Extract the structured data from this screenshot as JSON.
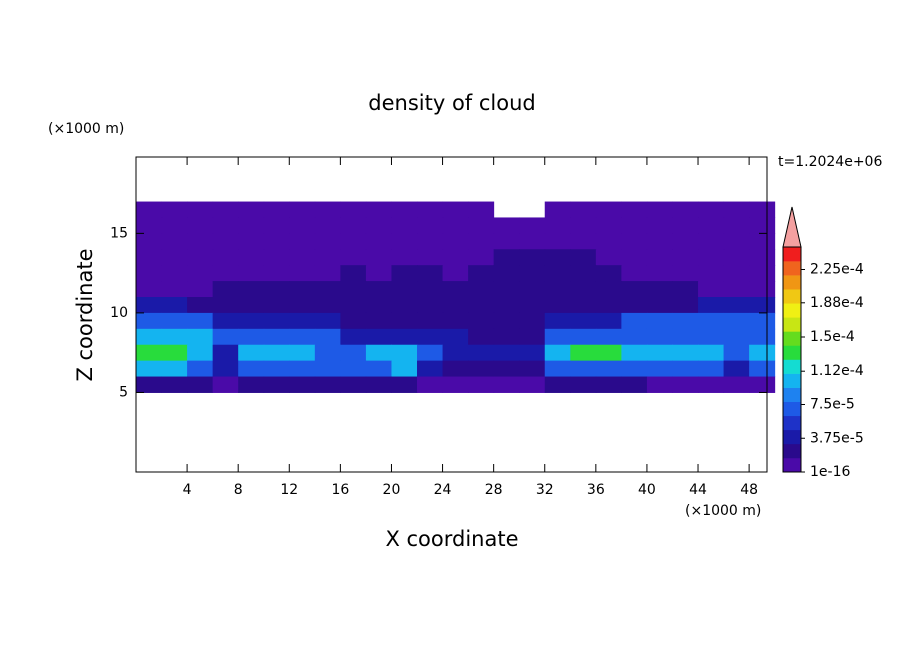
{
  "chart_data": {
    "type": "contour",
    "title": "density of cloud",
    "time_label": "t=1.2024e+06",
    "x_label": "X coordinate",
    "y_label": "Z coordinate",
    "x_unit": "(×1000 m)",
    "y_unit": "(×1000 m)",
    "xlim": [
      0,
      49.4
    ],
    "ylim": [
      0,
      19.8
    ],
    "xticks": [
      4,
      8,
      12,
      16,
      20,
      24,
      28,
      32,
      36,
      40,
      44,
      48
    ],
    "yticks": [
      5,
      10,
      15
    ],
    "x": [
      1,
      3,
      5,
      7,
      9,
      11,
      13,
      15,
      17,
      19,
      21,
      23,
      25,
      27,
      29,
      31,
      33,
      35,
      37,
      39,
      41,
      43,
      45,
      47,
      49
    ],
    "y": [
      16.5,
      15.5,
      14.5,
      13.5,
      12.5,
      11.5,
      10.5,
      9.5,
      8.5,
      7.5,
      6.5,
      5.5
    ],
    "values": [
      [
        2e-06,
        2e-06,
        2e-06,
        2e-06,
        2e-06,
        2e-06,
        2e-06,
        2e-06,
        2e-06,
        2e-06,
        2e-06,
        2e-06,
        2e-06,
        2e-06,
        null,
        null,
        2e-06,
        2e-06,
        2e-06,
        2e-06,
        2e-06,
        2e-06,
        2e-06,
        2e-06,
        2e-06
      ],
      [
        2e-06,
        2e-06,
        2e-06,
        2e-06,
        2e-06,
        2e-06,
        2e-06,
        2e-06,
        2e-06,
        2e-06,
        2e-06,
        2e-06,
        2e-06,
        2e-06,
        2e-06,
        2e-06,
        2e-06,
        2e-06,
        2e-06,
        2e-06,
        2e-06,
        2e-06,
        2e-06,
        2e-06,
        2e-06
      ],
      [
        2e-06,
        2e-06,
        2e-06,
        2e-06,
        2e-06,
        2e-06,
        2e-06,
        2e-06,
        2e-06,
        2e-06,
        2e-06,
        2e-06,
        2e-06,
        2e-06,
        2e-06,
        2e-06,
        2e-06,
        2e-06,
        2e-06,
        2e-06,
        2e-06,
        2e-06,
        2e-06,
        2e-06,
        2e-06
      ],
      [
        2e-06,
        2e-06,
        2e-06,
        2e-06,
        2e-06,
        2e-06,
        2e-06,
        2e-06,
        2e-06,
        2e-06,
        2e-06,
        2e-06,
        2e-06,
        2e-06,
        2e-05,
        2e-05,
        2e-05,
        2e-05,
        2e-06,
        2e-06,
        2e-06,
        2e-06,
        2e-06,
        2e-06,
        2e-06
      ],
      [
        2e-06,
        2e-06,
        2e-06,
        2e-06,
        2e-06,
        2e-06,
        2e-06,
        2e-06,
        2e-05,
        2e-06,
        2e-05,
        2e-05,
        2e-06,
        2e-05,
        2e-05,
        2e-05,
        2e-05,
        2e-05,
        2e-05,
        2e-06,
        2e-06,
        2e-06,
        2e-06,
        2e-06,
        2e-06
      ],
      [
        2e-06,
        2e-06,
        2e-06,
        2e-05,
        2e-05,
        2e-05,
        2e-05,
        2e-05,
        2e-05,
        2e-05,
        2e-05,
        2e-05,
        2e-05,
        2e-05,
        2e-05,
        2e-05,
        2e-05,
        2e-05,
        2e-05,
        2e-05,
        2e-05,
        2e-05,
        2e-06,
        2e-06,
        2e-06
      ],
      [
        4e-05,
        4e-05,
        2e-05,
        2e-05,
        2e-05,
        2e-05,
        2e-05,
        2e-05,
        2e-05,
        2e-05,
        2e-05,
        2e-05,
        2e-05,
        2e-05,
        2e-05,
        2e-05,
        2e-05,
        2e-05,
        2e-05,
        2e-05,
        2e-05,
        2e-05,
        4e-05,
        4e-05,
        4e-05
      ],
      [
        7e-05,
        7e-05,
        7e-05,
        4e-05,
        4e-05,
        4e-05,
        4e-05,
        4e-05,
        2e-05,
        2e-05,
        2e-05,
        2e-05,
        2e-05,
        2e-05,
        2e-05,
        2e-05,
        4e-05,
        4e-05,
        4e-05,
        7e-05,
        7e-05,
        7e-05,
        7e-05,
        7e-05,
        7e-05
      ],
      [
        0.0001,
        0.0001,
        0.0001,
        7e-05,
        7e-05,
        7e-05,
        7e-05,
        7e-05,
        4e-05,
        4e-05,
        4e-05,
        4e-05,
        4e-05,
        2e-05,
        2e-05,
        2e-05,
        7e-05,
        7e-05,
        7e-05,
        7e-05,
        7e-05,
        7e-05,
        7e-05,
        7e-05,
        7e-05
      ],
      [
        0.00013,
        0.00013,
        0.0001,
        4e-05,
        0.0001,
        0.0001,
        0.0001,
        7e-05,
        7e-05,
        0.0001,
        0.0001,
        7e-05,
        4e-05,
        4e-05,
        4e-05,
        4e-05,
        0.0001,
        0.00013,
        0.00013,
        0.0001,
        0.0001,
        0.0001,
        0.0001,
        7e-05,
        0.0001
      ],
      [
        0.0001,
        0.0001,
        7e-05,
        4e-05,
        7e-05,
        7e-05,
        7e-05,
        7e-05,
        7e-05,
        7e-05,
        0.0001,
        4e-05,
        2e-05,
        2e-05,
        2e-05,
        2e-05,
        7e-05,
        7e-05,
        7e-05,
        7e-05,
        7e-05,
        7e-05,
        7e-05,
        4e-05,
        7e-05
      ],
      [
        2e-05,
        2e-05,
        2e-05,
        2e-06,
        2e-05,
        2e-05,
        2e-05,
        2e-05,
        2e-05,
        2e-05,
        2e-05,
        2e-06,
        2e-06,
        2e-06,
        2e-06,
        2e-06,
        2e-05,
        2e-05,
        2e-05,
        2e-05,
        2e-06,
        2e-06,
        2e-06,
        2e-06,
        2e-06
      ]
    ],
    "colorbar": {
      "clim": [
        1e-16,
        0.00025
      ],
      "colors": [
        "#4a0aa8",
        "#2a0a8c",
        "#1a1aa8",
        "#1e32c8",
        "#1e5ae6",
        "#1e82f0",
        "#14b4f0",
        "#14dcd2",
        "#28dc3c",
        "#64dc1e",
        "#c8e614",
        "#f0f014",
        "#f0c814",
        "#f09614",
        "#f0641e",
        "#f01e1e"
      ],
      "extend_color": "#f4a0a0",
      "ticks": [
        {
          "value": 1e-16,
          "label": "1e-16"
        },
        {
          "value": 3.75e-05,
          "label": "3.75e-5"
        },
        {
          "value": 7.5e-05,
          "label": "7.5e-5"
        },
        {
          "value": 0.000112,
          "label": "1.12e-4"
        },
        {
          "value": 0.00015,
          "label": "1.5e-4"
        },
        {
          "value": 0.000188,
          "label": "1.88e-4"
        },
        {
          "value": 0.000225,
          "label": "2.25e-4"
        }
      ]
    }
  }
}
